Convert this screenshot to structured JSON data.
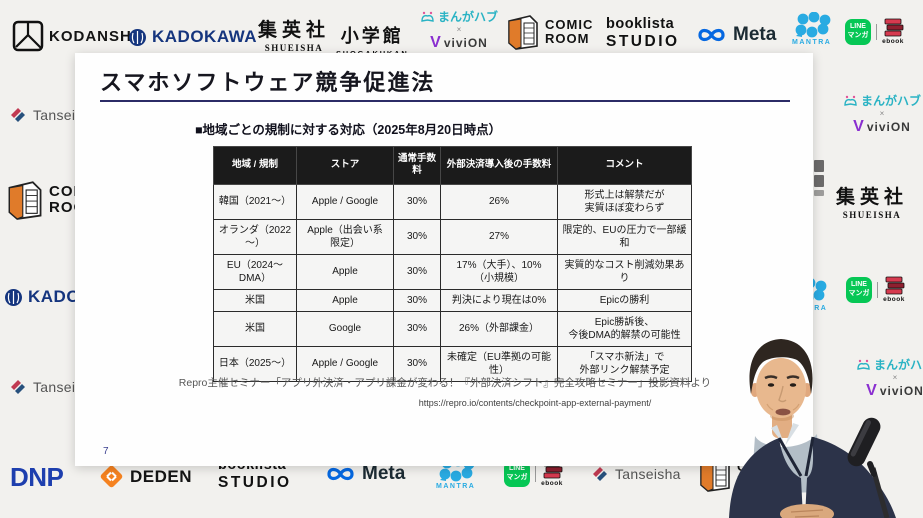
{
  "slide": {
    "title": "スマホソフトウェア競争促進法",
    "subheading": "■地域ごとの規制に対する対応（2025年8月20日時点）",
    "table": {
      "headers": [
        "地域 / 規制",
        "ストア",
        "通常手数料",
        "外部決済導入後の手数料",
        "コメント"
      ],
      "rows": [
        [
          "韓国（2021～）",
          "Apple / Google",
          "30%",
          "26%",
          "形式上は解禁だが\n実質ほぼ変わらず"
        ],
        [
          "オランダ（2022\n～）",
          "Apple（出会い系\n限定）",
          "30%",
          "27%",
          "限定的、EUの圧力で一部緩和"
        ],
        [
          "EU（2024～\nDMA）",
          "Apple",
          "30%",
          "17%（大手）、10%\n（小規模）",
          "実質的なコスト削減効果あり"
        ],
        [
          "米国",
          "Apple",
          "30%",
          "判決により現在は0%",
          "Epicの勝利"
        ],
        [
          "米国",
          "Google",
          "30%",
          "26%（外部課金）",
          "Epic勝訴後、\n今後DMA的解禁の可能性"
        ],
        [
          "日本（2025～）",
          "Apple / Google",
          "30%",
          "未確定（EU準拠の可能\n性）",
          "「スマホ新法」で\n外部リンク解禁予定"
        ]
      ]
    },
    "caption": "Repro主催セミナー「アプリ外決済・アプリ課金が変わる！『外部決済シフト』完全攻略セミナー」投影資料より",
    "url": "https://repro.io/contents/checkpoint-app-external-payment/",
    "page_number": "7"
  },
  "logos": {
    "kodansha": "KODANSHA",
    "kadokawa": "KADOKAWA",
    "shueisha": "集英社",
    "shueisha_sub": "SHUEISHA",
    "shogakukan": "小学館",
    "shogakukan_sub": "SHOGAKUKAN",
    "mangahub": "まんがハブ",
    "cross": "×",
    "vivion_v": "V",
    "vivion": "viviON",
    "comic": "COMIC",
    "room": "ROOM",
    "booklista": "booklista",
    "studio": "STUDIO",
    "meta": "Meta",
    "mantra": "MANTRA",
    "line_line1": "LINE",
    "line_line2": "マンガ",
    "ebook": "ebook",
    "tanseisha": "Tanseisha",
    "dnp": "DNP",
    "deden": "DEDEN"
  },
  "icons": {
    "kodansha-mark-icon": "square-monogram",
    "kadokawa-emblem-icon": "phoenix-circle",
    "mangahub-book-icon": "open-book-sparkle",
    "comic-room-box-icon": "isometric-room",
    "meta-infinity-icon": "infinity-loop",
    "mantra-dots-icon": "dot-cluster",
    "line-manga-badge-icon": "rounded-speech-square",
    "ebook-books-icon": "stacked-books",
    "tanseisha-mark-icon": "double-slash",
    "deden-mark-icon": "orange-diamond-arrows",
    "microphone-icon": "capsule-mic"
  },
  "colors": {
    "background": "#f2f1ee",
    "slide_background": "#fefefe",
    "slide_underline": "#2b2b66",
    "table_header_bg": "#1b1b1b",
    "meta_blue": "#0668e1",
    "line_green": "#06c755",
    "mantra_blue": "#29abe2",
    "kadokawa_blue": "#15357e",
    "dnp_blue": "#1e3fae",
    "deden_orange": "#f58220",
    "vivion_purple": "#8a2fd0",
    "mangahub_teal": "#2ab3c4",
    "tanseisha_red": "#c03a52",
    "tanseisha_blue": "#27507c",
    "comic_room_orange": "#e07b2a",
    "ebook_red": "#d63a4f"
  }
}
